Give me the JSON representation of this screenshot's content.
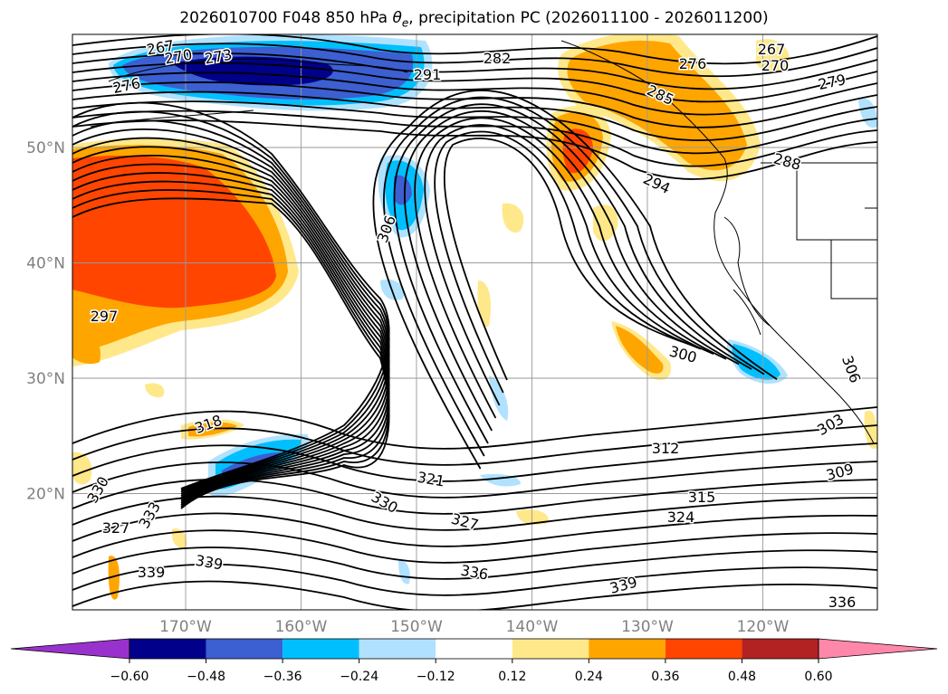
{
  "chart_data": {
    "type": "contour map",
    "title": "2026010700 F048 850 hPa θe, precipitation PC (2026011100 - 2026011200)",
    "title_parts": {
      "before": "2026010700 F048 850 hPa ",
      "symbol": "θ",
      "subscript": "e",
      "after": ", precipitation PC (2026011100 - 2026011200)"
    },
    "map": {
      "region": "North Pacific / western North America",
      "lon_ticks": [
        "170°W",
        "160°W",
        "150°W",
        "140°W",
        "130°W",
        "120°W"
      ],
      "lat_ticks": [
        "50°N",
        "40°N",
        "30°N",
        "20°N"
      ],
      "lon_values": [
        -170,
        -160,
        -150,
        -140,
        -130,
        -120
      ],
      "lat_values": [
        50,
        40,
        30,
        20
      ],
      "grid": true
    },
    "contour_labels": [
      "267",
      "270",
      "273",
      "276",
      "282",
      "291",
      "276",
      "279",
      "267",
      "270",
      "285",
      "288",
      "294",
      "306",
      "297",
      "300",
      "306",
      "303",
      "309",
      "312",
      "315",
      "318",
      "321",
      "324",
      "327",
      "330",
      "330",
      "333",
      "336",
      "339",
      "339",
      "339",
      "336",
      "327"
    ],
    "colorbar": {
      "orientation": "horizontal",
      "extend": "both",
      "ticks": [
        "−0.60",
        "−0.48",
        "−0.36",
        "−0.24",
        "−0.12",
        "0.12",
        "0.24",
        "0.36",
        "0.48",
        "0.60"
      ],
      "colors": [
        "#9932cc",
        "#00008b",
        "#3c5fd2",
        "#00bfff",
        "#b0e2ff",
        "#ffffff",
        "#ffe88a",
        "#ffa500",
        "#ff4500",
        "#b22222",
        "#ff88aa"
      ]
    }
  }
}
